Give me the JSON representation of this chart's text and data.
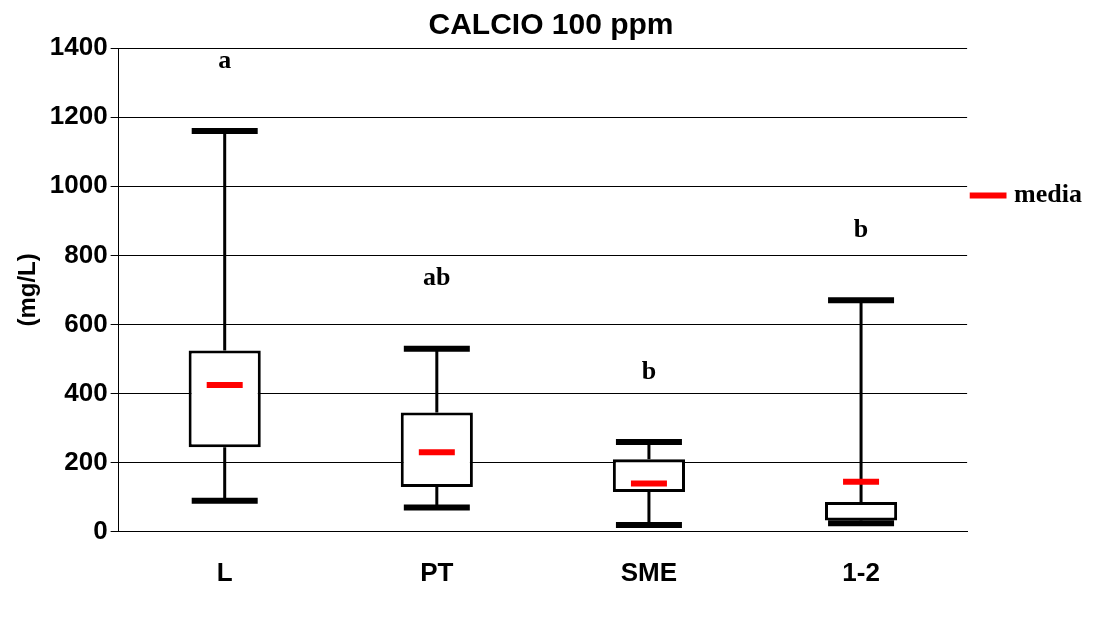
{
  "chart_data": {
    "type": "box",
    "title": "CALCIO 100 ppm",
    "ylabel": "(mg/L)",
    "categories": [
      "L",
      "PT",
      "SME",
      "1-2"
    ],
    "series": [
      {
        "type": "box",
        "name": "media",
        "color": "#000000",
        "boxes": [
          {
            "low": 90,
            "q1": 245,
            "q3": 525,
            "high": 1160,
            "mean": 425
          },
          {
            "low": 70,
            "q1": 130,
            "q3": 345,
            "high": 530,
            "mean": 230
          },
          {
            "low": 20,
            "q1": 115,
            "q3": 210,
            "high": 260,
            "mean": 140
          },
          {
            "low": 25,
            "q1": 33,
            "q3": 86,
            "high": 670,
            "mean": 145
          }
        ]
      }
    ],
    "ylim": [
      0,
      1400
    ],
    "yticks": [
      0,
      200,
      400,
      600,
      800,
      1000,
      1200,
      1400
    ],
    "grid": "y",
    "legend": "right",
    "annotations": [
      "a",
      "ab",
      "b",
      "b"
    ]
  }
}
